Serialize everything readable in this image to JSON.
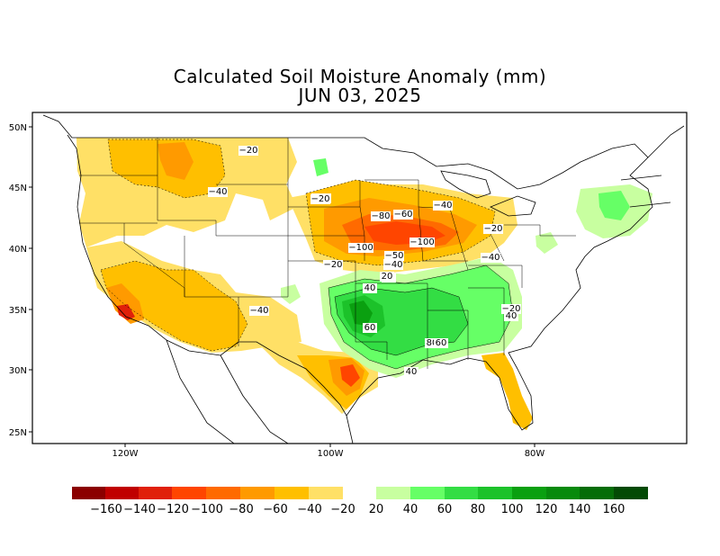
{
  "title": "Calculated Soil Moisture Anomaly (mm)",
  "date": "JUN 03, 2025",
  "lat_labels": [
    "50N",
    "45N",
    "40N",
    "35N",
    "30N",
    "25N"
  ],
  "lon_labels": [
    "120W",
    "100W",
    "80W"
  ],
  "contour_labels": [
    "-20",
    "-40",
    "-20",
    "-20",
    "-40",
    "-80",
    "-60",
    "-40",
    "-20",
    "-100",
    "-100",
    "-50",
    "-40",
    "-20",
    "-20",
    "-40",
    "40",
    "60",
    "80",
    "20",
    "40",
    "60",
    "40",
    "-40",
    "20"
  ],
  "legend": {
    "labels": [
      "-160",
      "-140",
      "-120",
      "-100",
      "-80",
      "-60",
      "-40",
      "-20",
      "20",
      "40",
      "60",
      "80",
      "100",
      "120",
      "140",
      "160"
    ],
    "colors": [
      "#8b0000",
      "#c00000",
      "#e0200a",
      "#ff4500",
      "#ff6a00",
      "#ff9a00",
      "#ffbf00",
      "#ffe066",
      "#c8ffa0",
      "#66ff66",
      "#33dd44",
      "#1cc22a",
      "#0aa010",
      "#078a0c",
      "#056d08",
      "#034a05"
    ]
  },
  "colors": {
    "frame": "#000000",
    "background": "#ffffff"
  }
}
